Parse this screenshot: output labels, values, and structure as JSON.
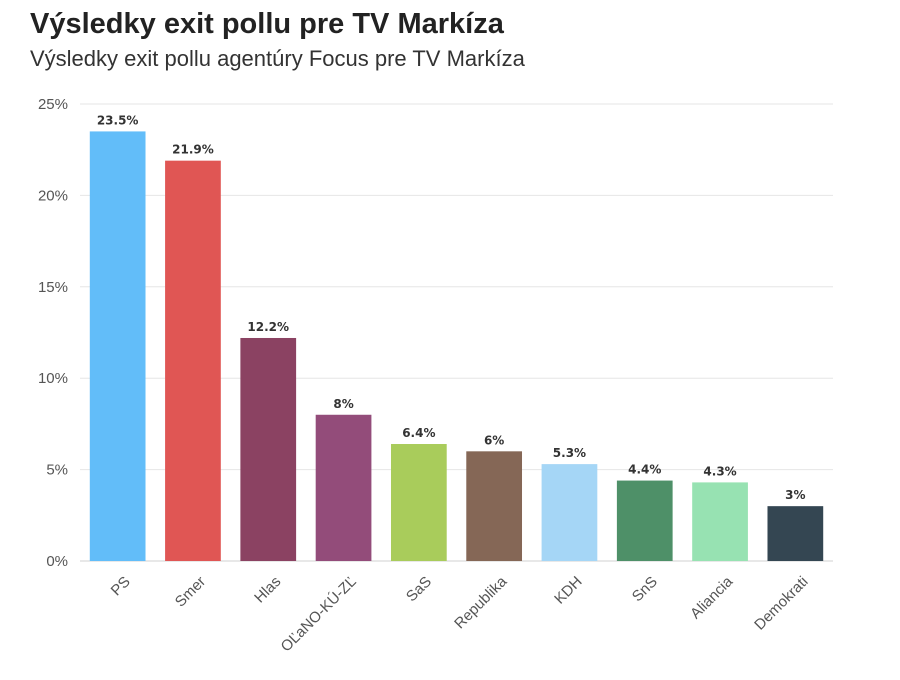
{
  "header": {
    "title": "Výsledky exit pollu pre TV Markíza",
    "subtitle": "Výsledky exit pollu agentúry Focus pre TV Markíza"
  },
  "chart_data": {
    "type": "bar",
    "title": "Výsledky exit pollu pre TV Markíza",
    "subtitle": "Výsledky exit pollu agentúry Focus pre TV Markíza",
    "categories": [
      "PS",
      "Smer",
      "Hlas",
      "OĽaNO-KÚ-ZĽ",
      "SaS",
      "Republika",
      "KDH",
      "SnS",
      "Aliancia",
      "Demokrati"
    ],
    "values": [
      23.5,
      21.9,
      12.2,
      8,
      6.4,
      6,
      5.3,
      4.4,
      4.3,
      3
    ],
    "data_labels": [
      "23.5%",
      "21.9%",
      "12.2%",
      "8%",
      "6.4%",
      "6%",
      "5.3%",
      "4.4%",
      "4.3%",
      "3%"
    ],
    "colors": [
      "#62bdf9",
      "#e05654",
      "#8b4262",
      "#934c7a",
      "#a9cc5b",
      "#856756",
      "#a5d6f6",
      "#4e9068",
      "#97e2b2",
      "#344652"
    ],
    "xlabel": "",
    "ylabel": "",
    "ylim": [
      0,
      25
    ],
    "yticks": [
      0,
      5,
      10,
      15,
      20,
      25
    ],
    "ytick_labels": [
      "0%",
      "5%",
      "10%",
      "15%",
      "20%",
      "25%"
    ],
    "grid": true,
    "legend": "none"
  }
}
